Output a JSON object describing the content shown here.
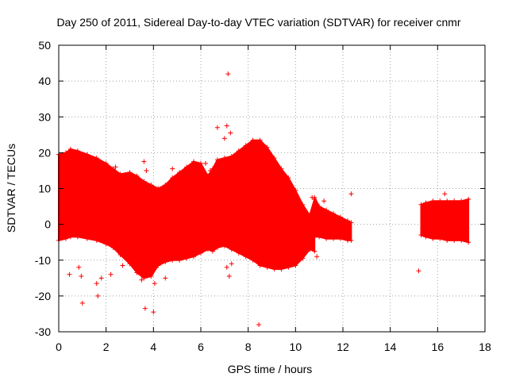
{
  "chart_data": {
    "type": "scatter",
    "title": "Day 250 of 2011, Sidereal Day-to-day VTEC variation (SDTVAR) for receiver cnmr",
    "xlabel": "GPS time / hours",
    "ylabel": "SDTVAR / TECUs",
    "xlim": [
      0,
      18
    ],
    "ylim": [
      -30,
      50
    ],
    "xticks": [
      0,
      2,
      4,
      6,
      8,
      10,
      12,
      14,
      16,
      18
    ],
    "yticks": [
      -30,
      -20,
      -10,
      0,
      10,
      20,
      30,
      40,
      50
    ],
    "grid": true,
    "marker": "+",
    "color": "#ff0000",
    "series": [
      {
        "name": "SDTVAR",
        "band_segments": [
          {
            "x": [
              0.0,
              0.3,
              0.5,
              0.8,
              1.2,
              1.6,
              2.0,
              2.3,
              2.6,
              3.0,
              3.3,
              3.6,
              3.9,
              4.2,
              4.5,
              4.8,
              5.1,
              5.4,
              5.7,
              6.0,
              6.3,
              6.5,
              6.7,
              7.0,
              7.3,
              7.6,
              7.9,
              8.2,
              8.5,
              8.8,
              9.1,
              9.4,
              9.7,
              10.0,
              10.3,
              10.6,
              10.8
            ],
            "upper": [
              19.5,
              20.0,
              21.0,
              20.5,
              19.5,
              18.5,
              17.0,
              15.5,
              14.0,
              14.5,
              13.5,
              12.0,
              11.0,
              10.0,
              11.0,
              13.0,
              14.5,
              16.0,
              17.5,
              17.0,
              13.5,
              15.5,
              18.0,
              18.5,
              19.0,
              20.5,
              22.0,
              23.5,
              23.5,
              21.5,
              18.5,
              15.5,
              13.0,
              9.5,
              5.5,
              2.5,
              7.0
            ],
            "lower": [
              -4.5,
              -4.0,
              -3.5,
              -3.5,
              -4.0,
              -4.5,
              -5.5,
              -6.5,
              -8.5,
              -11.0,
              -13.5,
              -15.0,
              -14.5,
              -11.5,
              -10.5,
              -10.0,
              -10.0,
              -9.5,
              -9.0,
              -8.0,
              -7.0,
              -7.5,
              -6.5,
              -6.0,
              -7.0,
              -8.0,
              -9.0,
              -10.0,
              -11.5,
              -12.0,
              -12.5,
              -12.5,
              -12.0,
              -11.5,
              -9.5,
              -7.0,
              -7.5
            ]
          },
          {
            "x": [
              10.8,
              11.0,
              11.3,
              11.6,
              11.9,
              12.2,
              12.35
            ],
            "upper": [
              7.5,
              5.0,
              4.0,
              3.0,
              2.0,
              1.0,
              0.5
            ],
            "lower": [
              -3.5,
              -3.5,
              -4.0,
              -4.0,
              -4.0,
              -4.5,
              -4.5
            ]
          },
          {
            "x": [
              15.3,
              15.5,
              15.8,
              16.1,
              16.4,
              16.7,
              17.0,
              17.3
            ],
            "upper": [
              5.5,
              6.0,
              6.5,
              6.5,
              6.5,
              6.5,
              6.5,
              7.0
            ],
            "lower": [
              -3.0,
              -3.5,
              -4.0,
              -4.0,
              -4.5,
              -4.5,
              -4.5,
              -5.0
            ]
          }
        ],
        "outliers": [
          [
            7.15,
            42.0
          ],
          [
            6.7,
            27.0
          ],
          [
            7.1,
            27.5
          ],
          [
            7.25,
            25.5
          ],
          [
            7.0,
            24.0
          ],
          [
            8.45,
            -28.0
          ],
          [
            3.65,
            -23.5
          ],
          [
            4.0,
            -24.5
          ],
          [
            1.0,
            -22.0
          ],
          [
            1.65,
            -20.0
          ],
          [
            1.6,
            -16.5
          ],
          [
            1.8,
            -15.0
          ],
          [
            0.45,
            -14.0
          ],
          [
            0.95,
            -14.5
          ],
          [
            0.85,
            -12.0
          ],
          [
            3.3,
            -12.5
          ],
          [
            3.5,
            -15.5
          ],
          [
            4.05,
            -16.5
          ],
          [
            4.5,
            -15.0
          ],
          [
            2.2,
            -14.0
          ],
          [
            2.7,
            -11.5
          ],
          [
            7.1,
            -12.0
          ],
          [
            7.2,
            -14.5
          ],
          [
            7.3,
            -11.0
          ],
          [
            12.35,
            8.5
          ],
          [
            15.2,
            -13.0
          ],
          [
            16.3,
            8.5
          ],
          [
            10.9,
            -9.0
          ],
          [
            10.7,
            7.5
          ],
          [
            11.2,
            6.5
          ],
          [
            2.4,
            16.0
          ],
          [
            3.6,
            17.5
          ],
          [
            3.7,
            15.0
          ],
          [
            4.8,
            15.5
          ],
          [
            6.2,
            17.0
          ],
          [
            6.4,
            15.0
          ]
        ]
      }
    ]
  }
}
